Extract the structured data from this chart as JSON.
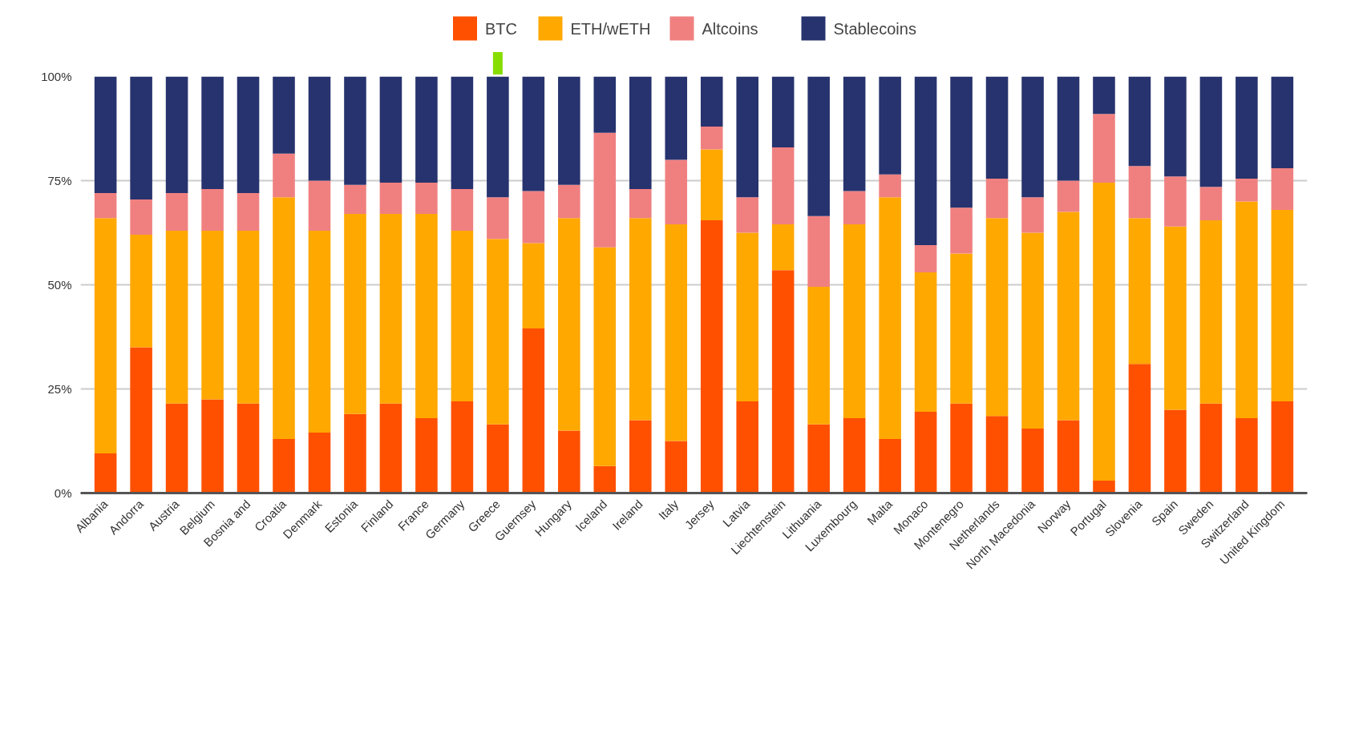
{
  "chart_data": {
    "type": "bar",
    "stacked": true,
    "categories": [
      "Albania",
      "Andorra",
      "Austria",
      "Belgium",
      "Bosnia and",
      "Croatia",
      "Denmark",
      "Estonia",
      "Finland",
      "France",
      "Germany",
      "Greece",
      "Guernsey",
      "Hungary",
      "Iceland",
      "Ireland",
      "Italy",
      "Jersey",
      "Latvia",
      "Liechtenstein",
      "Lithuania",
      "Luxembourg",
      "Malta",
      "Monaco",
      "Montenegro",
      "Netherlands",
      "North Macedonia",
      "Norway",
      "Portugal",
      "Slovenia",
      "Spain",
      "Sweden",
      "Switzerland",
      "United Kingdom"
    ],
    "series": [
      {
        "name": "BTC",
        "color": "#ff5000",
        "values": [
          9.5,
          35,
          21.5,
          22.5,
          21.5,
          13,
          14.5,
          19,
          21.5,
          18,
          22,
          16.5,
          39.5,
          15,
          6.5,
          17.5,
          12.5,
          65.5,
          22,
          53.5,
          16.5,
          18,
          13,
          19.5,
          21.5,
          18.5,
          15.5,
          17.5,
          3,
          31,
          20,
          21.5,
          18,
          22
        ]
      },
      {
        "name": "ETH/wETH",
        "color": "#ffa800",
        "values": [
          56.5,
          27,
          41.5,
          40.5,
          41.5,
          58,
          48.5,
          48,
          45.5,
          49,
          41,
          44.5,
          20.5,
          51,
          52.5,
          48.5,
          52,
          17,
          40.5,
          11,
          33,
          46.5,
          58,
          33.5,
          36,
          47.5,
          47,
          50,
          71.5,
          35,
          44,
          44,
          52,
          46
        ]
      },
      {
        "name": "Altcoins",
        "color": "#f08080",
        "values": [
          6,
          8.5,
          9,
          10,
          9,
          10.5,
          12,
          7,
          7.5,
          7.5,
          10,
          10,
          12.5,
          8,
          27.5,
          7,
          15.5,
          5.5,
          8.5,
          18.5,
          17,
          8,
          5.5,
          6.5,
          11,
          9.5,
          8.5,
          7.5,
          16.5,
          12.5,
          12,
          8,
          5.5,
          10
        ]
      },
      {
        "name": "Stablecoins",
        "color": "#27336e",
        "values": [
          28,
          29.5,
          28,
          27,
          28,
          18.5,
          25,
          26,
          25.5,
          25.5,
          27,
          29,
          27.5,
          26,
          13.5,
          27,
          20,
          12,
          29,
          17,
          33.5,
          27.5,
          23.5,
          40.5,
          31.5,
          24.5,
          29,
          25,
          9,
          21.5,
          24,
          26.5,
          24.5,
          22
        ]
      }
    ],
    "ylim": [
      0,
      100
    ],
    "yticks": [
      {
        "value": 0,
        "label": "0%"
      },
      {
        "value": 25,
        "label": "25%"
      },
      {
        "value": 50,
        "label": "50%"
      },
      {
        "value": 75,
        "label": "75%"
      },
      {
        "value": 100,
        "label": "100%"
      }
    ],
    "grid": "y",
    "legend": "top"
  }
}
